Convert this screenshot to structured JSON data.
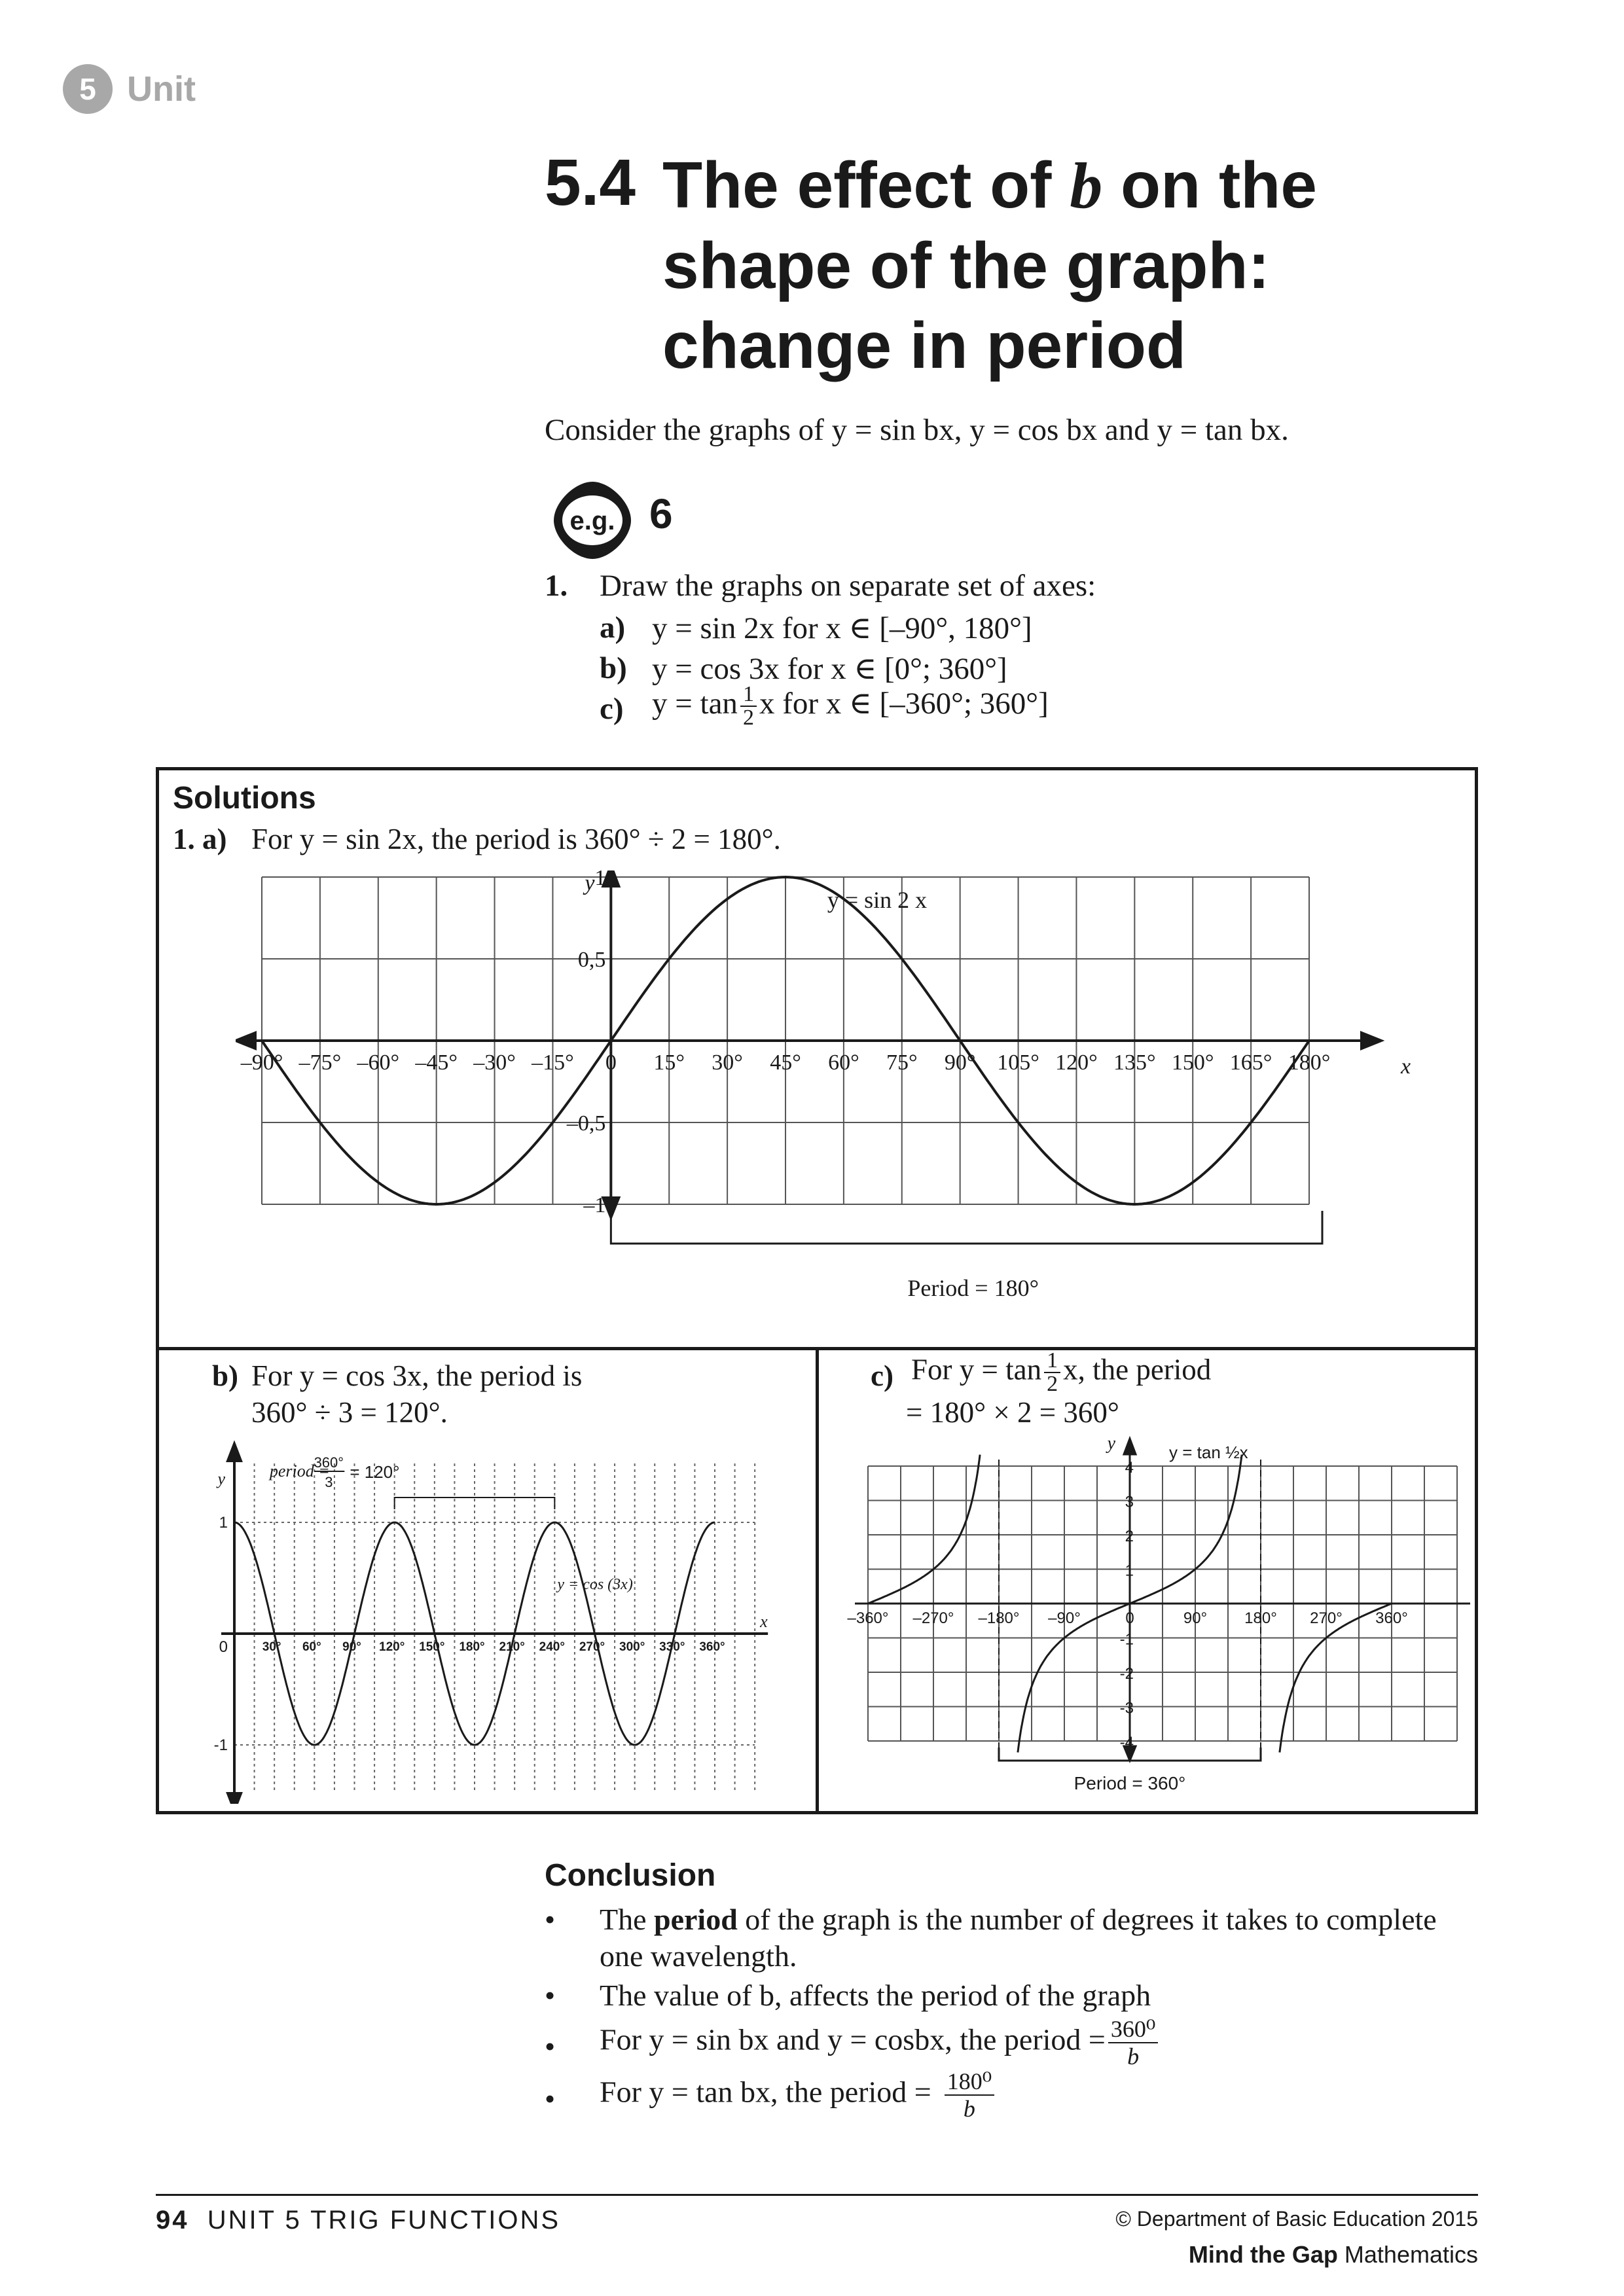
{
  "unit_tag": {
    "number": "5",
    "label": "Unit"
  },
  "heading": {
    "number": "5.4",
    "line1_a": "The effect of ",
    "line1_var": "b",
    "line1_b": " on the",
    "line2": "shape of the graph:",
    "line3": "change in period"
  },
  "intro": "Consider the graphs of y = sin bx, y = cos bx and y = tan bx.",
  "example": {
    "icon_label": "e.g.",
    "number": "6",
    "q_num": "1.",
    "q_text": "Draw the graphs on separate set of axes:",
    "a_label": "a)",
    "a_text": "y = sin 2x for x ∈ [–90°, 180°]",
    "b_label": "b)",
    "b_text": "y = cos 3x for x ∈ [0°; 360°]",
    "c_label": "c)",
    "c_pre": "y = tan",
    "c_num": "1",
    "c_den": "2",
    "c_post": "x for x ∈ [–360°; 360°]"
  },
  "solutions": {
    "heading": "Solutions",
    "a_prefix": "1.  a)",
    "a_text": "For y = sin 2x, the period is 360° ÷ 2 = 180°.",
    "b_label": "b)",
    "b_line1": "For y = cos 3x, the period is",
    "b_line2": "360° ÷ 3 = 120°.",
    "c_label": "c)",
    "c_pre": "For y = tan",
    "c_num": "1",
    "c_den": "2",
    "c_post": "x, the period",
    "c_line2": "= 180° × 2 = 360°"
  },
  "graphs": {
    "a": {
      "curve_label": "y = sin 2 x",
      "y_axis": "y",
      "x_axis": "x",
      "y_ticks": [
        "1",
        "0,5",
        "–0,5",
        "–1"
      ],
      "x_ticks": [
        "–90°",
        "–75°",
        "–60°",
        "–45°",
        "–30°",
        "–15°",
        "0",
        "15°",
        "30°",
        "45°",
        "60°",
        "75°",
        "90°",
        "105°",
        "120°",
        "135°",
        "150°",
        "165°",
        "180°"
      ],
      "period_label": "Period = 180°"
    },
    "b": {
      "y_axis": "y",
      "x_axis": "x",
      "period_word": "period",
      "period_num": "360°",
      "period_den": "3",
      "period_value": "= 120°",
      "curve_label": "y = cos (3x)",
      "y_ticks": [
        "1",
        "-1"
      ],
      "origin": "0",
      "x_ticks": [
        "30°",
        "60°",
        "90°",
        "120°",
        "150°",
        "180°",
        "210°",
        "240°",
        "270°",
        "300°",
        "330°",
        "360°"
      ]
    },
    "c": {
      "y_axis": "y",
      "x_axis": "x",
      "curve_label": "y = tan ½x",
      "y_ticks": [
        "4",
        "3",
        "2",
        "1",
        "-1",
        "-2",
        "-3",
        "-4"
      ],
      "x_ticks": [
        "–360°",
        "–270°",
        "–180°",
        "–90°",
        "0",
        "90°",
        "180°",
        "270°",
        "360°"
      ],
      "period_label": "Period = 360°"
    }
  },
  "chart_data": [
    {
      "type": "line",
      "series": [
        {
          "name": "y = sin 2 x",
          "function": "sin(2x)",
          "x_range": [
            -90,
            180
          ]
        }
      ],
      "xlim": [
        -90,
        180
      ],
      "ylim": [
        -1,
        1
      ]
    },
    {
      "type": "line",
      "series": [
        {
          "name": "y = cos (3x)",
          "function": "cos(3x)",
          "x_range": [
            0,
            360
          ]
        }
      ],
      "xlim": [
        0,
        360
      ],
      "ylim": [
        -1,
        1
      ]
    },
    {
      "type": "line",
      "series": [
        {
          "name": "y = tan ½x",
          "function": "tan(x/2)",
          "x_range": [
            -360,
            360
          ]
        }
      ],
      "xlim": [
        -360,
        360
      ],
      "ylim": [
        -4,
        4
      ]
    }
  ],
  "conclusion": {
    "heading": "Conclusion",
    "b1_pre": "The ",
    "b1_bold": "period",
    "b1_post": " of the graph is the number of degrees it takes to complete",
    "b1_line2": "one wavelength.",
    "b2": "The value of b, affects the period of the graph",
    "b3_text": "For y = sin bx and y = cosbx, the period =",
    "b3_num": "360⁰",
    "b3_den": "b",
    "b4_text": "For y = tan bx, the period =",
    "b4_num": "180⁰",
    "b4_den": "b"
  },
  "footer": {
    "page": "94",
    "unit": "UNIT 5 TRIG FUNCTIONS",
    "copyright": "© Department of Basic Education 2015",
    "brand_bold": "Mind the Gap",
    "brand_rest": " Mathematics"
  }
}
